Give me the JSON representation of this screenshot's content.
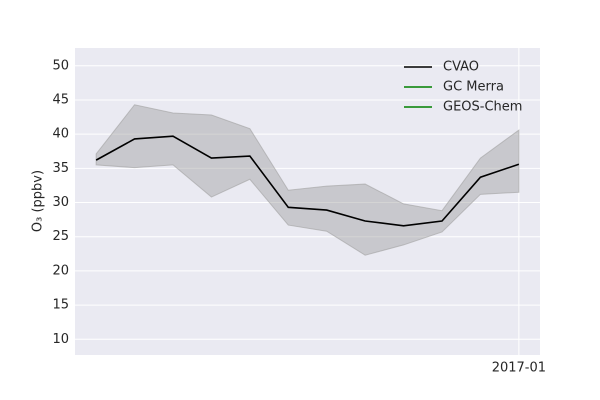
{
  "chart_data": {
    "type": "line",
    "ylabel": "O₃ (ppbv)",
    "categories": [
      null,
      null,
      null,
      null,
      null,
      null,
      null,
      null,
      null,
      null,
      null,
      "2017-01"
    ],
    "series": [
      {
        "name": "CVAO",
        "color": "#000000",
        "values": [
          36.2,
          39.3,
          39.7,
          36.5,
          36.8,
          29.3,
          28.9,
          27.3,
          26.6,
          27.3,
          33.7,
          35.6
        ],
        "upper": [
          37.1,
          44.3,
          43.1,
          42.8,
          40.8,
          31.8,
          32.4,
          32.7,
          29.8,
          28.8,
          36.5,
          40.6
        ],
        "lower": [
          35.5,
          35.1,
          35.5,
          30.8,
          33.4,
          26.7,
          25.8,
          22.3,
          23.8,
          25.7,
          31.2,
          31.5
        ],
        "band_color": "#a0a0a0"
      },
      {
        "name": "GC Merra",
        "color": "#008000",
        "values": [
          null,
          null,
          null,
          null,
          null,
          null,
          null,
          null,
          null,
          null,
          null,
          null
        ]
      },
      {
        "name": "GEOS-Chem",
        "color": "#008000",
        "values": [
          null,
          null,
          null,
          null,
          null,
          null,
          null,
          null,
          null,
          null,
          null,
          null
        ]
      }
    ],
    "ylim": [
      7.7,
      52.6
    ],
    "yticks": [
      10,
      15,
      20,
      25,
      30,
      35,
      40,
      45,
      50
    ],
    "grid": true,
    "legend": "upper right"
  }
}
